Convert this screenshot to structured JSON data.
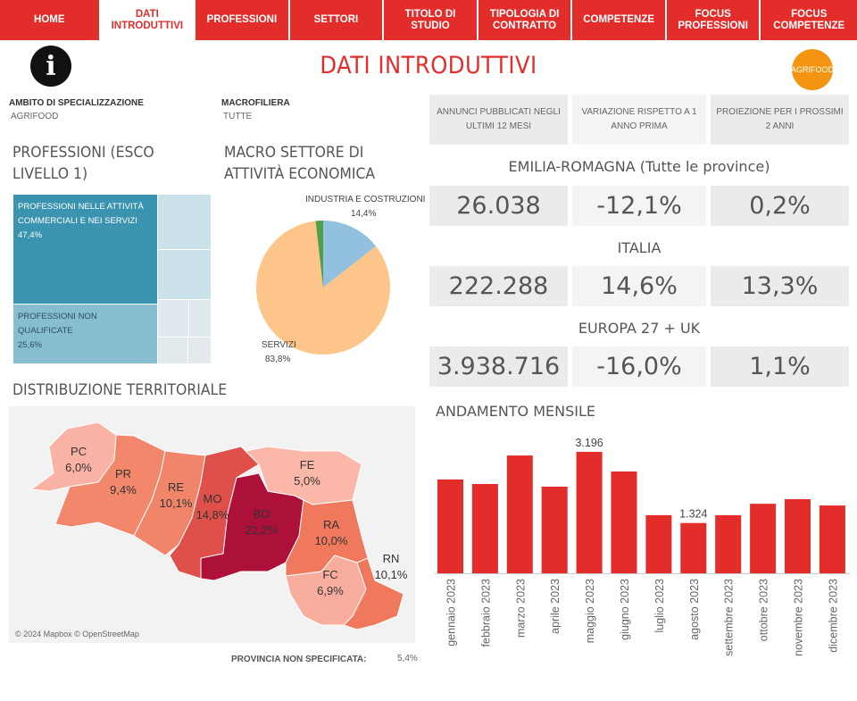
{
  "nav": [
    {
      "label": "HOME"
    },
    {
      "label": "DATI INTRODUTTIVI",
      "active": true
    },
    {
      "label": "PROFESSIONI"
    },
    {
      "label": "SETTORI"
    },
    {
      "label": "TITOLO DI STUDIO"
    },
    {
      "label": "TIPOLOGIA DI CONTRATTO"
    },
    {
      "label": "COMPETENZE"
    },
    {
      "label": "FOCUS PROFESSIONI"
    },
    {
      "label": "FOCUS COMPETENZE"
    }
  ],
  "page_title": "DATI INTRODUTTIVI",
  "info_icon": "i",
  "badge": "AGRIFOOD",
  "filters": {
    "ambito_label": "AMBITO DI SPECIALIZZAZIONE",
    "ambito_value": "AGRIFOOD",
    "macro_label": "MACROFILIERA",
    "macro_value": "TUTTE"
  },
  "kpi": {
    "headers": [
      "ANNUNCI PUBBLICATI NEGLI ULTIMI 12 MESI",
      "VARIAZIONE RISPETTO A 1 ANNO PRIMA",
      "PROIEZIONE PER I PROSSIMI 2 ANNI"
    ],
    "areas": [
      {
        "name": "EMILIA-ROMAGNA (Tutte le province)",
        "values": [
          "26.038",
          "-12,1%",
          "0,2%"
        ]
      },
      {
        "name": "ITALIA",
        "values": [
          "222.288",
          "14,6%",
          "13,3%"
        ]
      },
      {
        "name": "EUROPA 27 + UK",
        "values": [
          "3.938.716",
          "-16,0%",
          "1,1%"
        ]
      }
    ]
  },
  "treemap": {
    "title": "PROFESSIONI (ESCO LIVELLO 1)",
    "items": [
      {
        "label": "PROFESSIONI NELLE ATTIVITÀ COMMERCIALI E NEI SERVIZI",
        "value": "47,4%",
        "color": "#3a94b0"
      },
      {
        "label": "PROFESSIONI NON QUALIFICATE",
        "value": "25,6%",
        "color": "#86bdd0"
      }
    ]
  },
  "pie": {
    "title": "MACRO SETTORE DI ATTIVITÀ ECONOMICA",
    "slices": [
      {
        "label": "INDUSTRIA E COSTRUZIONI",
        "value": "14,4%",
        "pct": 14.4,
        "color": "#92c0df"
      },
      {
        "label": "SERVIZI",
        "value": "83,8%",
        "pct": 83.8,
        "color": "#fdc58a"
      },
      {
        "label": "",
        "value": "",
        "pct": 1.8,
        "color": "#4f9e4a"
      }
    ]
  },
  "map": {
    "title": "DISTRIBUZIONE TERRITORIALE",
    "attribution": "© 2024 Mapbox © OpenStreetMap",
    "unspecified_label": "PROVINCIA NON SPECIFICATA:",
    "unspecified_value": "5,4%",
    "provinces": [
      {
        "code": "PC",
        "value": "6,0%",
        "color": "#f9b2a4"
      },
      {
        "code": "PR",
        "value": "9,4%",
        "color": "#f2876c"
      },
      {
        "code": "RE",
        "value": "10,1%",
        "color": "#f0856a"
      },
      {
        "code": "MO",
        "value": "14,8%",
        "color": "#e0504a"
      },
      {
        "code": "BO",
        "value": "22,2%",
        "color": "#ad1039"
      },
      {
        "code": "FE",
        "value": "5,0%",
        "color": "#fbb8a8"
      },
      {
        "code": "RA",
        "value": "10,0%",
        "color": "#f0785c"
      },
      {
        "code": "FC",
        "value": "6,9%",
        "color": "#f8ad9e"
      },
      {
        "code": "RN",
        "value": "10,1%",
        "color": "#f0785c"
      }
    ]
  },
  "chart_data": {
    "type": "bar",
    "title": "ANDAMENTO MENSILE",
    "color": "#e32d2a",
    "categories": [
      "gennaio 2023",
      "febbraio 2023",
      "marzo 2023",
      "aprile 2023",
      "maggio 2023",
      "giugno 2023",
      "luglio 2023",
      "agosto 2023",
      "settembre 2023",
      "ottobre 2023",
      "novembre 2023",
      "dicembre 2023"
    ],
    "values": [
      2470,
      2350,
      3100,
      2280,
      3196,
      2680,
      1530,
      1324,
      1530,
      1830,
      1950,
      1785
    ],
    "data_labels": {
      "4": "3.196",
      "7": "1.324"
    }
  }
}
